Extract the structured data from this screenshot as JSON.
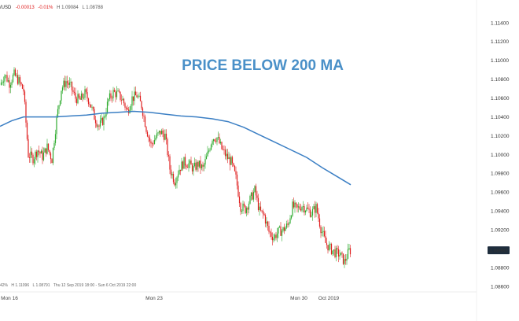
{
  "header": {
    "symbol": "/USD",
    "change": "-0.00013",
    "change_pct": "-0.01%",
    "high": "H 1.09084",
    "low": "L 1.08788"
  },
  "footer": {
    "left_fragment": "42%",
    "high": "H 1.11096",
    "low": "L 1.08791",
    "range": "Thu 12 Sep 2019 18:00 - Sun 6 Oct 2019 22:00"
  },
  "colors": {
    "up": "#2eab2e",
    "down": "#e02020",
    "ma": "#3b7fc4",
    "annotation": "#4a90c8",
    "change_text": "#e02020",
    "price_label_bg": "#1e2d3d"
  },
  "chart_data": {
    "type": "candlestick",
    "annotation": "PRICE BELOW 200 MA",
    "ylim": [
      1.086,
      1.114
    ],
    "y_ticks": [
      "1.11400",
      "1.11200",
      "1.11000",
      "1.10800",
      "1.10600",
      "1.10400",
      "1.10200",
      "1.10000",
      "1.09800",
      "1.09600",
      "1.09400",
      "1.09200",
      "1.09000",
      "1.08800",
      "1.08600"
    ],
    "y_tick_values": [
      1.114,
      1.112,
      1.11,
      1.108,
      1.106,
      1.104,
      1.102,
      1.1,
      1.098,
      1.096,
      1.094,
      1.092,
      1.09,
      1.088,
      1.086
    ],
    "last_price": "1.08983",
    "last_price_value": 1.08983,
    "x_ticks": [
      {
        "label": "Mon 16",
        "index": 12
      },
      {
        "label": "Mon 23",
        "index": 196
      },
      {
        "label": "Mon 30",
        "index": 380
      },
      {
        "label": "Oct 2019",
        "index": 418
      }
    ],
    "close_path": [
      [
        0,
        1.1074
      ],
      [
        6,
        1.1085
      ],
      [
        12,
        1.1076
      ],
      [
        18,
        1.1085
      ],
      [
        24,
        1.1078
      ],
      [
        30,
        1.1068
      ],
      [
        36,
        1.1
      ],
      [
        42,
        1.0996
      ],
      [
        48,
        1.1005
      ],
      [
        54,
        1.0998
      ],
      [
        60,
        1.1008
      ],
      [
        66,
        1.0995
      ],
      [
        72,
        1.1038
      ],
      [
        78,
        1.107
      ],
      [
        84,
        1.1078
      ],
      [
        90,
        1.1072
      ],
      [
        96,
        1.106
      ],
      [
        102,
        1.1058
      ],
      [
        108,
        1.1065
      ],
      [
        114,
        1.1056
      ],
      [
        120,
        1.104
      ],
      [
        126,
        1.103
      ],
      [
        132,
        1.1038
      ],
      [
        138,
        1.1058
      ],
      [
        144,
        1.1066
      ],
      [
        150,
        1.1064
      ],
      [
        156,
        1.1058
      ],
      [
        162,
        1.1046
      ],
      [
        168,
        1.106
      ],
      [
        174,
        1.1063
      ],
      [
        180,
        1.1052
      ],
      [
        186,
        1.1028
      ],
      [
        192,
        1.101
      ],
      [
        198,
        1.1018
      ],
      [
        204,
        1.1024
      ],
      [
        210,
        1.102
      ],
      [
        216,
        1.0985
      ],
      [
        222,
        1.0972
      ],
      [
        228,
        1.0985
      ],
      [
        234,
        1.0992
      ],
      [
        240,
        1.099
      ],
      [
        246,
        1.0985
      ],
      [
        252,
        1.099
      ],
      [
        258,
        1.0985
      ],
      [
        264,
        1.1
      ],
      [
        270,
        1.1018
      ],
      [
        276,
        1.1018
      ],
      [
        282,
        1.1006
      ],
      [
        288,
        1.0998
      ],
      [
        294,
        1.0992
      ],
      [
        300,
        1.0975
      ],
      [
        306,
        1.0945
      ],
      [
        312,
        1.0942
      ],
      [
        318,
        1.0952
      ],
      [
        324,
        1.0962
      ],
      [
        330,
        1.094
      ],
      [
        336,
        1.0935
      ],
      [
        342,
        1.0918
      ],
      [
        348,
        1.0912
      ],
      [
        354,
        1.0918
      ],
      [
        360,
        1.092
      ],
      [
        366,
        1.0925
      ],
      [
        372,
        1.0945
      ],
      [
        378,
        1.0942
      ],
      [
        384,
        1.0946
      ],
      [
        390,
        1.0942
      ],
      [
        396,
        1.0938
      ],
      [
        402,
        1.0944
      ],
      [
        408,
        1.0922
      ],
      [
        414,
        1.0906
      ],
      [
        420,
        1.09
      ],
      [
        426,
        1.0896
      ],
      [
        432,
        1.0894
      ],
      [
        438,
        1.0886
      ],
      [
        444,
        1.0898
      ],
      [
        446,
        1.0898
      ]
    ],
    "ma_200": [
      [
        0,
        1.103
      ],
      [
        15,
        1.1036
      ],
      [
        30,
        1.104
      ],
      [
        50,
        1.104
      ],
      [
        70,
        1.104
      ],
      [
        90,
        1.1041
      ],
      [
        110,
        1.1042
      ],
      [
        130,
        1.1044
      ],
      [
        150,
        1.1045
      ],
      [
        170,
        1.1046
      ],
      [
        190,
        1.1045
      ],
      [
        210,
        1.1043
      ],
      [
        230,
        1.1041
      ],
      [
        250,
        1.104
      ],
      [
        270,
        1.1038
      ],
      [
        290,
        1.1035
      ],
      [
        310,
        1.1029
      ],
      [
        330,
        1.1021
      ],
      [
        350,
        1.1013
      ],
      [
        370,
        1.1005
      ],
      [
        390,
        1.0997
      ],
      [
        410,
        1.0986
      ],
      [
        430,
        1.0976
      ],
      [
        446,
        1.0968
      ]
    ]
  }
}
